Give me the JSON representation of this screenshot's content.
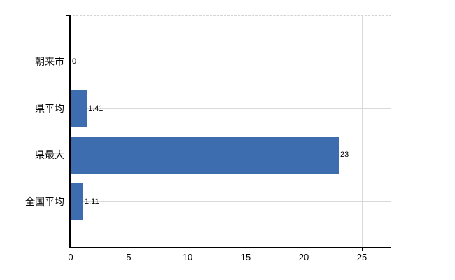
{
  "chart_data": {
    "type": "bar",
    "orientation": "horizontal",
    "categories": [
      "朝来市",
      "県平均",
      "県最大",
      "全国平均"
    ],
    "values": [
      0,
      1.41,
      23,
      1.11
    ],
    "value_labels": [
      "0",
      "1.41",
      "23",
      "1.11"
    ],
    "x_ticks": [
      0,
      5,
      10,
      15,
      20,
      25
    ],
    "x_tick_labels": [
      "0",
      "5",
      "10",
      "15",
      "20",
      "25"
    ],
    "xlim": [
      0,
      27.5
    ],
    "grid": true,
    "legend": false,
    "bar_color": "#3E6DAF",
    "grid_color": "#D9D9D9",
    "axis_color": "#000000",
    "text_color": "#000000",
    "background_color": "#FFFFFF"
  }
}
